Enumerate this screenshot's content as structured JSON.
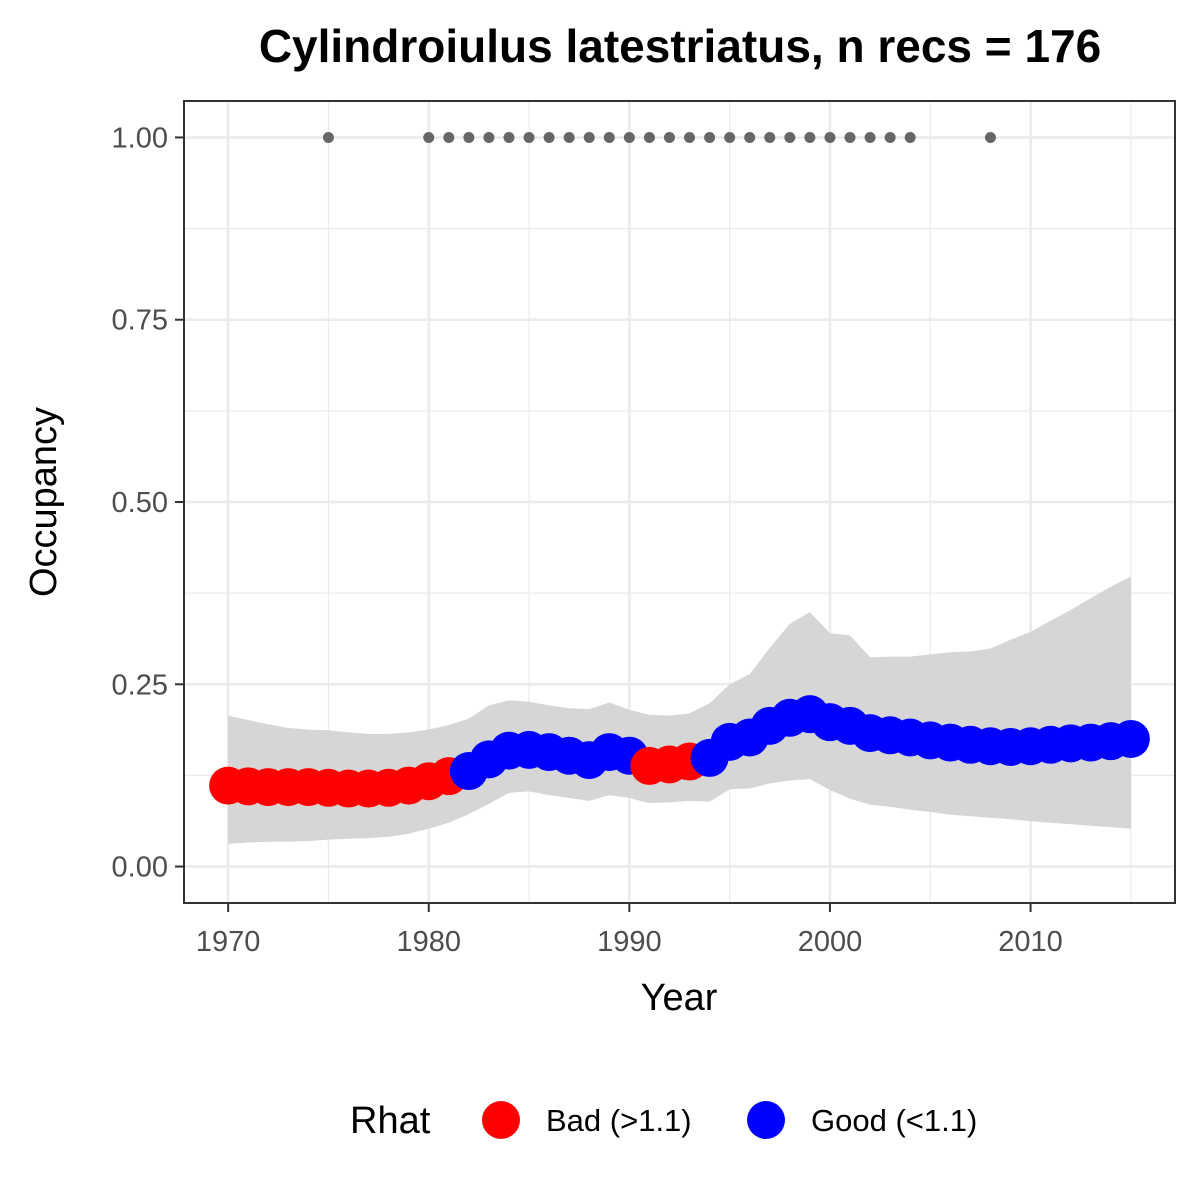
{
  "chart_data": {
    "type": "line",
    "title": "Cylindroiulus latestriatus, n recs = 176",
    "xlabel": "Year",
    "ylabel": "Occupancy",
    "xlim": [
      1967.8,
      2017.2
    ],
    "ylim": [
      -0.05,
      1.05
    ],
    "x_ticks": [
      1970,
      1980,
      1990,
      2000,
      2010
    ],
    "x_tick_labels": [
      "1970",
      "1980",
      "1990",
      "2000",
      "2010"
    ],
    "y_ticks": [
      0,
      0.25,
      0.5,
      0.75,
      1
    ],
    "y_tick_labels": [
      "0.00",
      "0.25",
      "0.50",
      "0.75",
      "1.00"
    ],
    "grid": true,
    "legend": {
      "title": "Rhat",
      "position": "bottom",
      "entries": [
        {
          "label": "Bad (>1.1)",
          "color": "#ff0000"
        },
        {
          "label": "Good (<1.1)",
          "color": "#0000ff"
        }
      ]
    },
    "colors": {
      "bad": "#ff0000",
      "good": "#0000ff",
      "ribbon": "#d6d6d6",
      "records": "#666666"
    },
    "occupancy": {
      "x": [
        1970,
        1971,
        1972,
        1973,
        1974,
        1975,
        1976,
        1977,
        1978,
        1979,
        1980,
        1981,
        1982,
        1983,
        1984,
        1985,
        1986,
        1987,
        1988,
        1989,
        1990,
        1991,
        1992,
        1993,
        1994,
        1995,
        1996,
        1997,
        1998,
        1999,
        2000,
        2001,
        2002,
        2003,
        2004,
        2005,
        2006,
        2007,
        2008,
        2009,
        2010,
        2011,
        2012,
        2013,
        2014,
        2015
      ],
      "mean": [
        0.111,
        0.11,
        0.109,
        0.109,
        0.109,
        0.108,
        0.107,
        0.107,
        0.108,
        0.111,
        0.117,
        0.124,
        0.131,
        0.147,
        0.159,
        0.16,
        0.157,
        0.152,
        0.146,
        0.157,
        0.152,
        0.138,
        0.14,
        0.144,
        0.149,
        0.171,
        0.177,
        0.193,
        0.204,
        0.209,
        0.198,
        0.193,
        0.183,
        0.18,
        0.177,
        0.173,
        0.17,
        0.167,
        0.165,
        0.164,
        0.165,
        0.167,
        0.169,
        0.17,
        0.172,
        0.175
      ],
      "lower": [
        0.031,
        0.033,
        0.034,
        0.034,
        0.035,
        0.037,
        0.038,
        0.039,
        0.041,
        0.045,
        0.052,
        0.06,
        0.072,
        0.086,
        0.101,
        0.103,
        0.098,
        0.094,
        0.09,
        0.098,
        0.094,
        0.087,
        0.088,
        0.09,
        0.089,
        0.106,
        0.107,
        0.114,
        0.118,
        0.12,
        0.105,
        0.093,
        0.085,
        0.082,
        0.078,
        0.075,
        0.071,
        0.069,
        0.067,
        0.065,
        0.062,
        0.06,
        0.058,
        0.056,
        0.054,
        0.052
      ],
      "upper": [
        0.207,
        0.201,
        0.195,
        0.19,
        0.188,
        0.187,
        0.184,
        0.182,
        0.182,
        0.184,
        0.188,
        0.194,
        0.203,
        0.221,
        0.228,
        0.226,
        0.221,
        0.217,
        0.216,
        0.225,
        0.215,
        0.208,
        0.207,
        0.21,
        0.224,
        0.25,
        0.264,
        0.3,
        0.333,
        0.349,
        0.32,
        0.317,
        0.287,
        0.288,
        0.288,
        0.291,
        0.294,
        0.295,
        0.299,
        0.311,
        0.322,
        0.337,
        0.352,
        0.368,
        0.384,
        0.398
      ],
      "rhat_status": [
        "bad",
        "bad",
        "bad",
        "bad",
        "bad",
        "bad",
        "bad",
        "bad",
        "bad",
        "bad",
        "bad",
        "bad",
        "good",
        "good",
        "good",
        "good",
        "good",
        "good",
        "good",
        "good",
        "good",
        "bad",
        "bad",
        "bad",
        "good",
        "good",
        "good",
        "good",
        "good",
        "good",
        "good",
        "good",
        "good",
        "good",
        "good",
        "good",
        "good",
        "good",
        "good",
        "good",
        "good",
        "good",
        "good",
        "good",
        "good",
        "good"
      ]
    },
    "record_years": [
      1975,
      1980,
      1981,
      1982,
      1983,
      1984,
      1985,
      1986,
      1987,
      1988,
      1989,
      1990,
      1991,
      1992,
      1993,
      1994,
      1995,
      1996,
      1997,
      1998,
      1999,
      2000,
      2001,
      2002,
      2003,
      2004,
      2008
    ],
    "record_value": 1.0
  }
}
